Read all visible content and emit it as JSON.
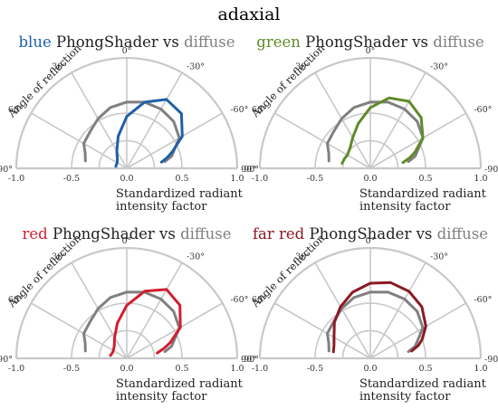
{
  "figure": {
    "title": "adaxial",
    "x_axis_label_line1": "Standardized radiant",
    "x_axis_label_line2": "intensity factor",
    "angle_axis_label": "Angle of reflection",
    "subtitle_mid": " PhongShader vs ",
    "subtitle_end": "diffuse",
    "diffuse_color": "#808080",
    "grid_color": "#c8c8c8"
  },
  "chart_data": [
    {
      "type": "line",
      "coordinate_system": "polar-half",
      "title_word": "blue",
      "title_color": "#1f5fa8",
      "x_ticks": [
        "-1.0",
        "-0.5",
        "0.0",
        "0.5",
        "1.0"
      ],
      "angle_ticks": [
        "90°",
        "60°",
        "30°",
        "0°",
        "-30°",
        "-60°",
        "-90°"
      ],
      "rlim": [
        0,
        1
      ],
      "angle_range_deg": [
        90,
        -90
      ],
      "series": [
        {
          "name": "PhongShader",
          "color": "#1f5fa8",
          "angles": [
            -80,
            -75,
            -70,
            -60,
            -45,
            -30,
            -15,
            0,
            15,
            30,
            45,
            60,
            70,
            80
          ],
          "r": [
            0.32,
            0.38,
            0.44,
            0.58,
            0.7,
            0.72,
            0.62,
            0.47,
            0.3,
            0.18,
            0.12,
            0.1,
            0.1,
            0.1
          ]
        },
        {
          "name": "diffuse",
          "color": "#808080",
          "angles": [
            -80,
            -75,
            -60,
            -45,
            -30,
            -15,
            0,
            15,
            30,
            45,
            60,
            70,
            80
          ],
          "r": [
            0.35,
            0.42,
            0.55,
            0.6,
            0.62,
            0.62,
            0.6,
            0.57,
            0.52,
            0.47,
            0.45,
            0.4,
            0.38
          ]
        }
      ]
    },
    {
      "type": "line",
      "coordinate_system": "polar-half",
      "title_word": "green",
      "title_color": "#5f8a28",
      "x_ticks": [
        "-1.0",
        "-0.5",
        "0.0",
        "0.5",
        "1.0"
      ],
      "angle_ticks": [
        "90°",
        "60°",
        "30°",
        "0°",
        "-30°",
        "-60°",
        "-90°"
      ],
      "rlim": [
        0,
        1
      ],
      "angle_range_deg": [
        90,
        -90
      ],
      "series": [
        {
          "name": "PhongShader",
          "color": "#5f8a28",
          "angles": [
            -80,
            -75,
            -70,
            -60,
            -45,
            -30,
            -15,
            0,
            15,
            30,
            45,
            60,
            70,
            80
          ],
          "r": [
            0.3,
            0.37,
            0.43,
            0.55,
            0.65,
            0.7,
            0.66,
            0.55,
            0.42,
            0.32,
            0.26,
            0.24,
            0.25,
            0.26
          ]
        },
        {
          "name": "diffuse",
          "color": "#808080",
          "angles": [
            -80,
            -75,
            -60,
            -45,
            -30,
            -15,
            0,
            15,
            30,
            45,
            60,
            70,
            80
          ],
          "r": [
            0.35,
            0.42,
            0.55,
            0.6,
            0.62,
            0.62,
            0.6,
            0.57,
            0.52,
            0.47,
            0.45,
            0.4,
            0.38
          ]
        }
      ]
    },
    {
      "type": "line",
      "coordinate_system": "polar-half",
      "title_word": "red",
      "title_color": "#d01f2f",
      "x_ticks": [
        "-1.0",
        "-0.5",
        "0.0",
        "0.5",
        "1.0"
      ],
      "angle_ticks": [
        "90°",
        "60°",
        "30°",
        "0°",
        "-30°",
        "-60°",
        "-90°"
      ],
      "rlim": [
        0,
        1
      ],
      "angle_range_deg": [
        90,
        -90
      ],
      "series": [
        {
          "name": "PhongShader",
          "color": "#d01f2f",
          "angles": [
            -80,
            -75,
            -70,
            -60,
            -45,
            -30,
            -15,
            0,
            15,
            30,
            45,
            60,
            70,
            80
          ],
          "r": [
            0.28,
            0.35,
            0.42,
            0.56,
            0.68,
            0.72,
            0.63,
            0.48,
            0.33,
            0.22,
            0.16,
            0.14,
            0.14,
            0.15
          ]
        },
        {
          "name": "diffuse",
          "color": "#808080",
          "angles": [
            -80,
            -75,
            -60,
            -45,
            -30,
            -15,
            0,
            15,
            30,
            45,
            60,
            70,
            80
          ],
          "r": [
            0.35,
            0.42,
            0.55,
            0.6,
            0.62,
            0.62,
            0.6,
            0.57,
            0.52,
            0.47,
            0.45,
            0.4,
            0.38
          ]
        }
      ]
    },
    {
      "type": "line",
      "coordinate_system": "polar-half",
      "title_word": "far red",
      "title_color": "#8b1a24",
      "x_ticks": [
        "-1.0",
        "-0.5",
        "0.0",
        "0.5",
        "1.0"
      ],
      "angle_ticks": [
        "90°",
        "60°",
        "30°",
        "0°",
        "-30°",
        "-60°",
        "-90°"
      ],
      "rlim": [
        0,
        1
      ],
      "angle_range_deg": [
        90,
        -90
      ],
      "series": [
        {
          "name": "PhongShader",
          "color": "#8b1a24",
          "angles": [
            -80,
            -75,
            -70,
            -60,
            -45,
            -30,
            -15,
            0,
            15,
            30,
            45,
            60,
            70,
            80
          ],
          "r": [
            0.38,
            0.45,
            0.5,
            0.58,
            0.66,
            0.7,
            0.71,
            0.68,
            0.62,
            0.54,
            0.46,
            0.38,
            0.35,
            0.34
          ]
        },
        {
          "name": "diffuse",
          "color": "#808080",
          "angles": [
            -80,
            -75,
            -60,
            -45,
            -30,
            -15,
            0,
            15,
            30,
            45,
            60,
            70,
            80
          ],
          "r": [
            0.35,
            0.42,
            0.55,
            0.6,
            0.62,
            0.62,
            0.6,
            0.57,
            0.52,
            0.47,
            0.45,
            0.4,
            0.38
          ]
        }
      ]
    }
  ]
}
